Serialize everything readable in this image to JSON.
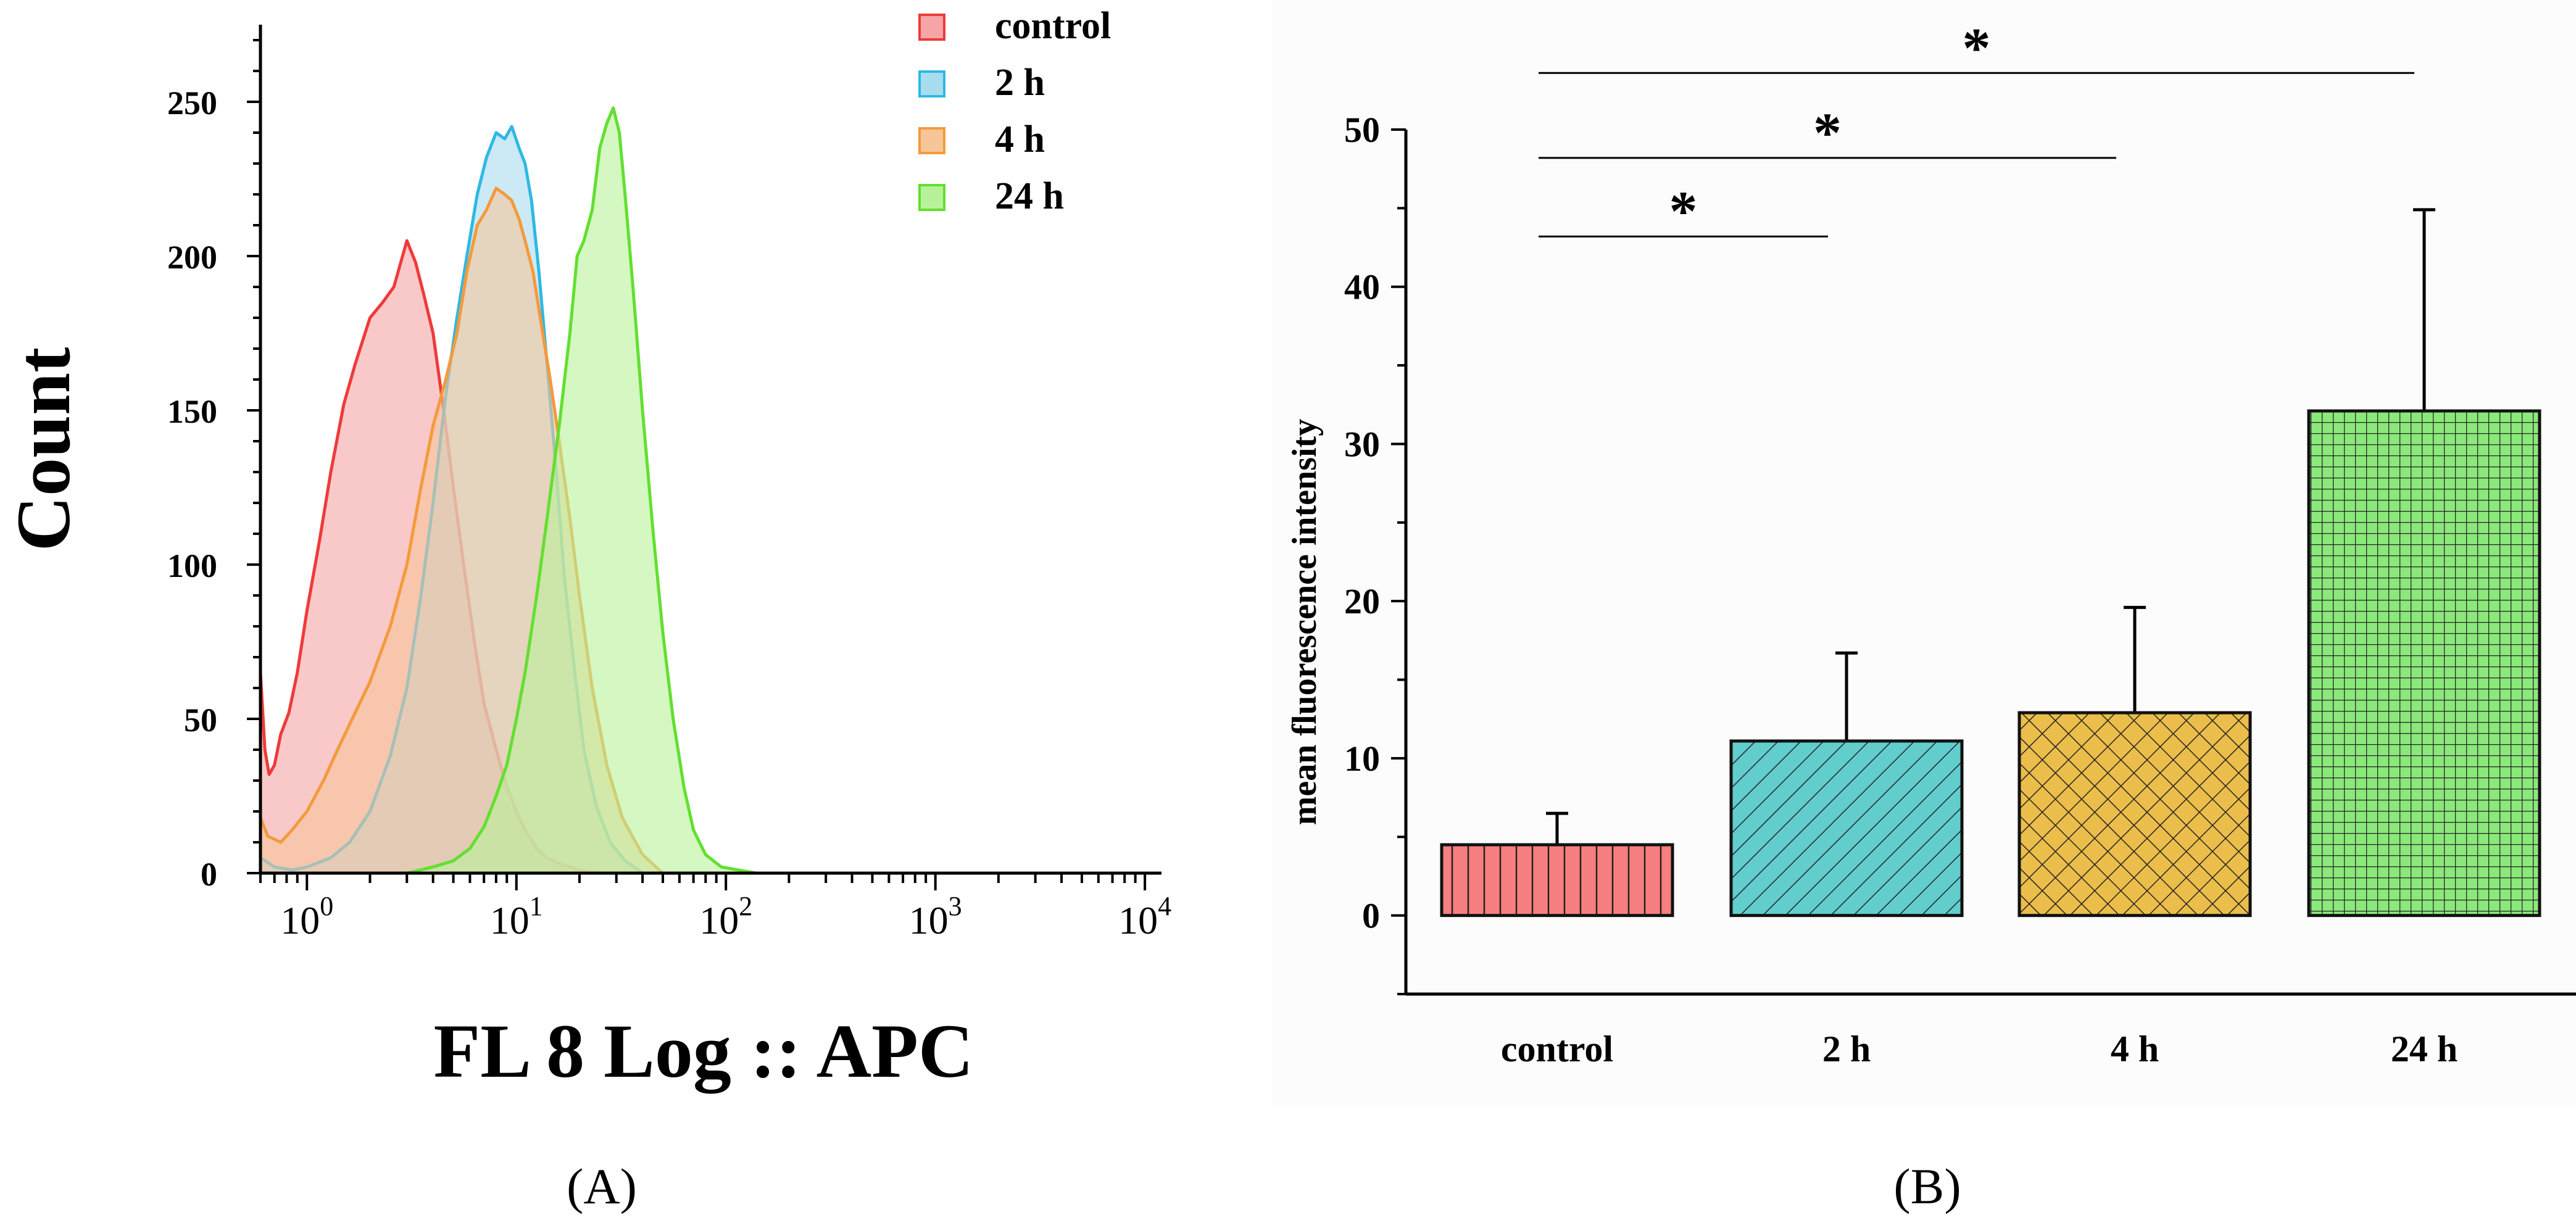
{
  "chart_data": [
    {
      "panel": "A",
      "type": "area",
      "caption": "(A)",
      "ylabel": "Count",
      "xlabel": "FL 8 Log :: APC",
      "x_scale": "log10",
      "xlim": [
        0.6,
        12000
      ],
      "ylim": [
        0,
        275
      ],
      "y_ticks": [
        "0",
        "50",
        "100",
        "150",
        "200",
        "250"
      ],
      "x_ticks": [
        {
          "base": "10",
          "exp": "0",
          "value": 1
        },
        {
          "base": "10",
          "exp": "1",
          "value": 10
        },
        {
          "base": "10",
          "exp": "2",
          "value": 100
        },
        {
          "base": "10",
          "exp": "3",
          "value": 1000
        },
        {
          "base": "10",
          "exp": "4",
          "value": 10000
        }
      ],
      "legend_position": "top-right",
      "series": [
        {
          "name": "control",
          "color": "#ef3a3a",
          "fill": "#f5a5a5",
          "x": [
            0.6,
            0.63,
            0.66,
            0.7,
            0.75,
            0.82,
            0.9,
            1.0,
            1.15,
            1.3,
            1.5,
            1.7,
            2.0,
            2.3,
            2.6,
            3.0,
            3.3,
            3.6,
            4.0,
            4.5,
            5.0,
            5.6,
            6.3,
            7.0,
            8.0,
            9.0,
            10.0,
            11.0,
            12.5,
            14.0,
            16.0,
            18.0,
            20.0,
            25.0
          ],
          "y": [
            65,
            40,
            32,
            35,
            45,
            52,
            65,
            85,
            108,
            130,
            152,
            165,
            180,
            185,
            190,
            205,
            198,
            188,
            175,
            150,
            125,
            100,
            75,
            55,
            40,
            28,
            20,
            14,
            8,
            5,
            3,
            2,
            1,
            0
          ]
        },
        {
          "name": "2 h",
          "color": "#2fb8e4",
          "fill": "#a8dcef",
          "x": [
            0.6,
            0.7,
            0.85,
            1.0,
            1.3,
            1.6,
            2.0,
            2.5,
            3.0,
            3.5,
            4.0,
            4.6,
            5.2,
            5.8,
            6.5,
            7.2,
            8.0,
            8.8,
            9.5,
            10.3,
            11.0,
            11.8,
            12.8,
            14.0,
            15.5,
            17.0,
            19.0,
            21.0,
            24.0,
            28.0,
            33.0,
            40.0
          ],
          "y": [
            5,
            2,
            1,
            2,
            5,
            10,
            20,
            38,
            60,
            90,
            120,
            155,
            180,
            200,
            220,
            232,
            240,
            238,
            242,
            235,
            230,
            218,
            195,
            165,
            130,
            95,
            65,
            40,
            22,
            10,
            4,
            0
          ]
        },
        {
          "name": "4 h",
          "color": "#f39a3c",
          "fill": "#f7c59a",
          "x": [
            0.6,
            0.65,
            0.75,
            0.85,
            1.0,
            1.2,
            1.4,
            1.7,
            2.0,
            2.5,
            3.0,
            3.5,
            4.0,
            4.6,
            5.2,
            5.8,
            6.5,
            7.2,
            8.0,
            8.8,
            9.5,
            10.3,
            11.0,
            12.0,
            13.0,
            14.5,
            16.0,
            18.0,
            20.0,
            23.0,
            27.0,
            32.0,
            40.0,
            50.0
          ],
          "y": [
            18,
            12,
            10,
            14,
            20,
            30,
            40,
            52,
            62,
            80,
            100,
            125,
            145,
            160,
            175,
            195,
            210,
            215,
            222,
            220,
            218,
            212,
            205,
            195,
            180,
            160,
            140,
            115,
            90,
            60,
            35,
            18,
            6,
            0
          ]
        },
        {
          "name": "24 h",
          "color": "#62e030",
          "fill": "#b9f19a",
          "x": [
            3.0,
            4.0,
            5.0,
            6.0,
            7.0,
            8.0,
            9.0,
            10.0,
            11.0,
            12.5,
            14.0,
            16.0,
            18.0,
            19.5,
            21.0,
            23.0,
            25.0,
            27.0,
            29.0,
            31.0,
            33.0,
            36.0,
            40.0,
            45.0,
            50.0,
            56.0,
            63.0,
            70.0,
            80.0,
            95.0,
            115.0,
            140.0
          ],
          "y": [
            0,
            2,
            4,
            8,
            15,
            25,
            35,
            50,
            65,
            90,
            115,
            145,
            175,
            200,
            205,
            215,
            235,
            243,
            248,
            240,
            220,
            190,
            150,
            110,
            78,
            50,
            28,
            14,
            6,
            2,
            1,
            0
          ]
        }
      ]
    },
    {
      "panel": "B",
      "type": "bar",
      "caption": "(B)",
      "ylabel": "mean fluorescence intensity",
      "xlabel": "",
      "ylim": [
        -5,
        50
      ],
      "y_ticks": [
        "0",
        "10",
        "20",
        "30",
        "40",
        "50"
      ],
      "categories": [
        "control",
        "2 h",
        "4 h",
        "24 h"
      ],
      "values": [
        4.5,
        11.1,
        12.9,
        32.1
      ],
      "errors": [
        2.0,
        5.6,
        6.7,
        12.8
      ],
      "colors": [
        "#f77f7f",
        "#62cdcd",
        "#ebbd4a",
        "#8be87a"
      ],
      "patterns": [
        "vertical",
        "diagonal",
        "crosshatch",
        "grid"
      ],
      "significance": [
        {
          "from": "control",
          "to": "2 h",
          "label": "*",
          "level": 43.2
        },
        {
          "from": "control",
          "to": "4 h",
          "label": "*",
          "level": 48.2
        },
        {
          "from": "control",
          "to": "24 h",
          "label": "*",
          "level": 53.6
        }
      ]
    }
  ]
}
